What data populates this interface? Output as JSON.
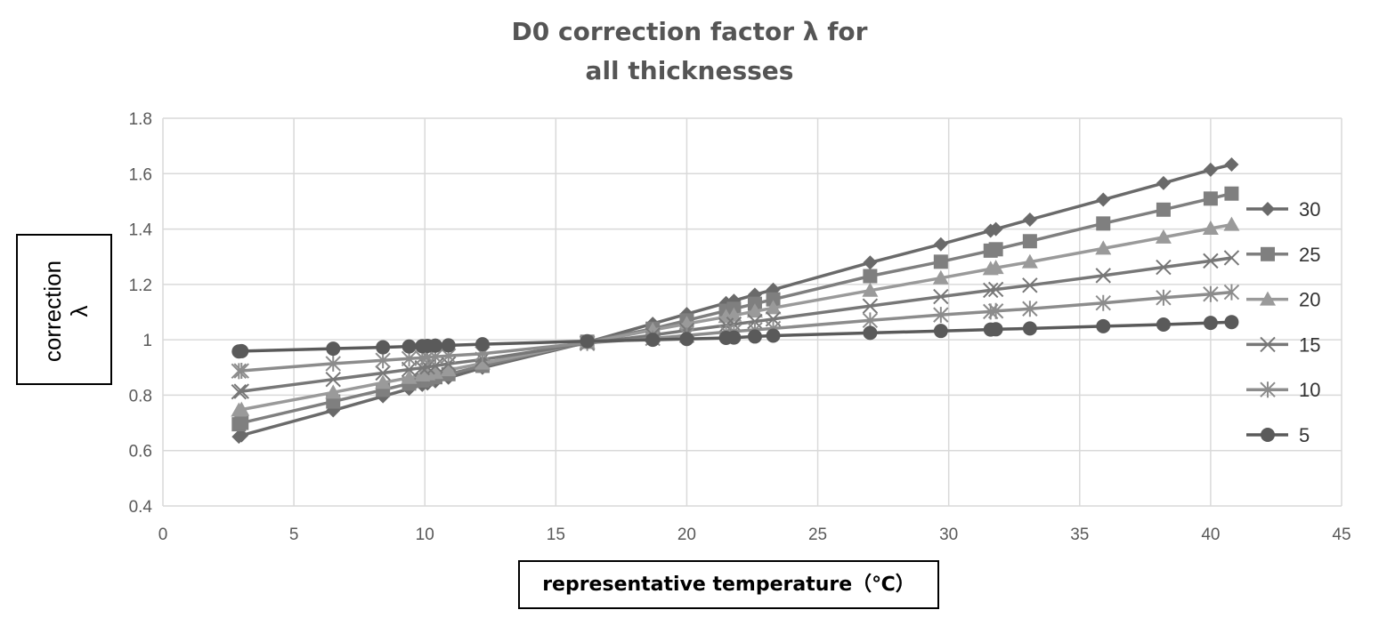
{
  "chart_data": {
    "type": "line",
    "title_lines": [
      "D0 correction factor λ for",
      "all thicknesses"
    ],
    "xlabel": "representative temperature（℃）",
    "ylabel_lines": [
      "correction",
      "λ"
    ],
    "xlim": [
      0,
      45
    ],
    "ylim": [
      0.4,
      1.8
    ],
    "x_ticks": [
      "0",
      "5",
      "10",
      "15",
      "20",
      "25",
      "30",
      "35",
      "40",
      "45"
    ],
    "y_ticks": [
      "0.4",
      "0.6",
      "0.8",
      "1",
      "1.2",
      "1.4",
      "1.6",
      "1.8"
    ],
    "grid": true,
    "legend_position": "right",
    "x": [
      2.9,
      3.0,
      6.5,
      8.4,
      9.4,
      9.9,
      10.1,
      10.4,
      10.9,
      12.2,
      16.2,
      18.7,
      20.0,
      21.5,
      21.8,
      22.6,
      23.3,
      27.0,
      29.7,
      31.6,
      31.8,
      33.1,
      35.9,
      38.2,
      40.0,
      40.8
    ],
    "series": [
      {
        "name": "30",
        "marker": "diamond",
        "color": "#6a6a6a",
        "values": [
          0.65,
          0.655,
          0.745,
          0.796,
          0.823,
          0.837,
          0.842,
          0.85,
          0.863,
          0.899,
          0.991,
          1.058,
          1.093,
          1.133,
          1.141,
          1.163,
          1.181,
          1.279,
          1.345,
          1.394,
          1.4,
          1.434,
          1.506,
          1.566,
          1.614,
          1.633
        ]
      },
      {
        "name": "25",
        "marker": "square",
        "color": "#7f7f7f",
        "values": [
          0.695,
          0.7,
          0.777,
          0.819,
          0.842,
          0.853,
          0.858,
          0.865,
          0.876,
          0.906,
          0.993,
          1.04,
          1.07,
          1.105,
          1.112,
          1.13,
          1.146,
          1.23,
          1.282,
          1.322,
          1.327,
          1.356,
          1.42,
          1.47,
          1.51,
          1.528
        ]
      },
      {
        "name": "20",
        "marker": "triangle",
        "color": "#9a9a9a",
        "values": [
          0.745,
          0.748,
          0.81,
          0.845,
          0.863,
          0.872,
          0.876,
          0.881,
          0.891,
          0.915,
          0.99,
          1.035,
          1.058,
          1.083,
          1.088,
          1.103,
          1.115,
          1.178,
          1.223,
          1.256,
          1.26,
          1.281,
          1.33,
          1.37,
          1.402,
          1.416
        ]
      },
      {
        "name": "15",
        "marker": "x",
        "color": "#777777",
        "values": [
          0.812,
          0.814,
          0.857,
          0.88,
          0.893,
          0.899,
          0.902,
          0.906,
          0.913,
          0.929,
          0.987,
          1.017,
          1.034,
          1.052,
          1.056,
          1.066,
          1.075,
          1.122,
          1.156,
          1.179,
          1.182,
          1.197,
          1.232,
          1.262,
          1.285,
          1.296
        ]
      },
      {
        "name": "10",
        "marker": "star",
        "color": "#8c8c8c",
        "values": [
          0.887,
          0.888,
          0.914,
          0.926,
          0.932,
          0.935,
          0.937,
          0.939,
          0.942,
          0.95,
          0.989,
          1.005,
          1.016,
          1.028,
          1.03,
          1.036,
          1.041,
          1.07,
          1.09,
          1.102,
          1.104,
          1.112,
          1.133,
          1.152,
          1.165,
          1.172
        ]
      },
      {
        "name": "5",
        "marker": "circle",
        "color": "#5a5a5a",
        "values": [
          0.958,
          0.959,
          0.968,
          0.973,
          0.976,
          0.977,
          0.978,
          0.979,
          0.98,
          0.984,
          0.995,
          1.0,
          1.003,
          1.007,
          1.008,
          1.012,
          1.015,
          1.025,
          1.032,
          1.037,
          1.038,
          1.041,
          1.049,
          1.055,
          1.061,
          1.064
        ]
      }
    ]
  }
}
